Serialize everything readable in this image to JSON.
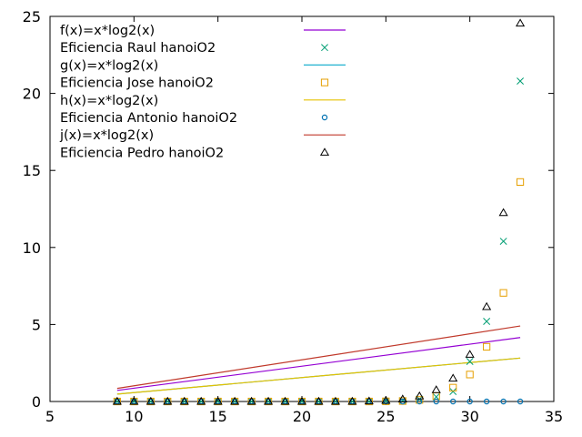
{
  "chart_data": {
    "type": "line",
    "title": "",
    "xlabel": "",
    "ylabel": "",
    "xlim": [
      5,
      35
    ],
    "ylim": [
      0,
      25
    ],
    "x_ticks": [
      5,
      10,
      15,
      20,
      25,
      30,
      35
    ],
    "y_ticks": [
      0,
      5,
      10,
      15,
      20,
      25
    ],
    "grid": false,
    "legend_position": "top-left",
    "lines": [
      {
        "name": "f(x)=x*log2(x)",
        "color": "#9400d3",
        "x": [
          9,
          33
        ],
        "y": [
          0.72,
          4.15
        ]
      },
      {
        "name": "g(x)=x*log2(x)",
        "color": "#20b2d0",
        "x": [
          9,
          33
        ],
        "y": [
          0.48,
          2.82
        ]
      },
      {
        "name": "h(x)=x*log2(x)",
        "color": "#e6c200",
        "x": [
          9,
          33
        ],
        "y": [
          0.48,
          2.82
        ]
      },
      {
        "name": "j(x)=x*log2(x)",
        "color": "#c0392b",
        "x": [
          9,
          33
        ],
        "y": [
          0.85,
          4.9
        ]
      }
    ],
    "series": [
      {
        "name": "Eficiencia Raul hanoiO2",
        "marker": "cross",
        "color": "#009e73",
        "x": [
          9,
          10,
          11,
          12,
          13,
          14,
          15,
          16,
          17,
          18,
          19,
          20,
          21,
          22,
          23,
          24,
          25,
          26,
          27,
          28,
          29,
          30,
          31,
          32,
          33
        ],
        "y": [
          0,
          0,
          0,
          0,
          0,
          0,
          0,
          0,
          0,
          0,
          0,
          0,
          0,
          0,
          0,
          0,
          0.02,
          0.05,
          0.15,
          0.3,
          0.65,
          2.6,
          5.2,
          10.4,
          20.8
        ]
      },
      {
        "name": "Eficiencia Jose hanoiO2",
        "marker": "square",
        "color": "#e69f00",
        "x": [
          9,
          10,
          11,
          12,
          13,
          14,
          15,
          16,
          17,
          18,
          19,
          20,
          21,
          22,
          23,
          24,
          25,
          26,
          27,
          28,
          29,
          30,
          31,
          32,
          33
        ],
        "y": [
          0,
          0,
          0,
          0,
          0,
          0,
          0,
          0,
          0,
          0,
          0,
          0,
          0,
          0,
          0,
          0,
          0.01,
          0.03,
          0.1,
          0.35,
          0.9,
          1.75,
          3.55,
          7.05,
          14.25
        ]
      },
      {
        "name": "Eficiencia Antonio hanoiO2",
        "marker": "circle",
        "color": "#0072b2",
        "x": [
          9,
          10,
          11,
          12,
          13,
          14,
          15,
          16,
          17,
          18,
          19,
          20,
          21,
          22,
          23,
          24,
          25,
          26,
          27,
          28,
          29,
          30,
          31,
          32,
          33
        ],
        "y": [
          0,
          0,
          0,
          0,
          0,
          0,
          0,
          0,
          0,
          0,
          0,
          0,
          0,
          0,
          0,
          0,
          0,
          0,
          0,
          0,
          0,
          0,
          0,
          0,
          0
        ]
      },
      {
        "name": "Eficiencia Pedro hanoiO2",
        "marker": "triangle",
        "color": "#000000",
        "x": [
          9,
          10,
          11,
          12,
          13,
          14,
          15,
          16,
          17,
          18,
          19,
          20,
          21,
          22,
          23,
          24,
          25,
          26,
          27,
          28,
          29,
          30,
          31,
          32,
          33
        ],
        "y": [
          0,
          0,
          0,
          0,
          0,
          0,
          0,
          0,
          0,
          0,
          0,
          0,
          0,
          0,
          0,
          0.02,
          0.06,
          0.15,
          0.35,
          0.75,
          1.5,
          3.05,
          6.15,
          12.25,
          24.55
        ]
      }
    ],
    "legend": [
      {
        "label": "f(x)=x*log2(x)",
        "kind": "line",
        "color": "#9400d3"
      },
      {
        "label": "Eficiencia Raul hanoiO2",
        "kind": "cross",
        "color": "#009e73"
      },
      {
        "label": "g(x)=x*log2(x)",
        "kind": "line",
        "color": "#20b2d0"
      },
      {
        "label": "Eficiencia Jose hanoiO2",
        "kind": "square",
        "color": "#e69f00"
      },
      {
        "label": "h(x)=x*log2(x)",
        "kind": "line",
        "color": "#e6c200"
      },
      {
        "label": "Eficiencia Antonio hanoiO2",
        "kind": "circle",
        "color": "#0072b2"
      },
      {
        "label": "j(x)=x*log2(x)",
        "kind": "line",
        "color": "#c0392b"
      },
      {
        "label": "Eficiencia Pedro hanoiO2",
        "kind": "triangle",
        "color": "#000000"
      }
    ]
  }
}
